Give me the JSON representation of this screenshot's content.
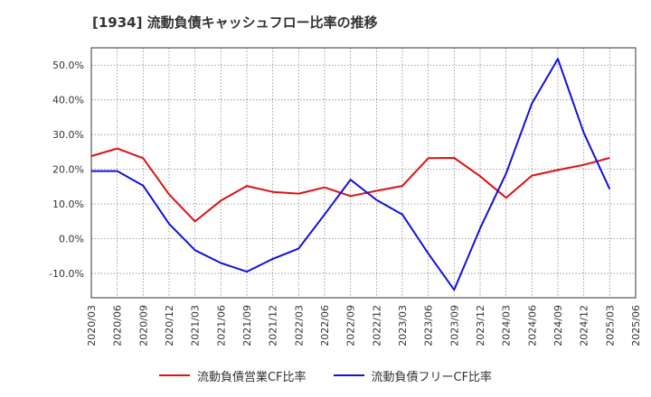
{
  "chart_data": {
    "type": "line",
    "title": "[1934]  流動負債キャッシュフロー比率の推移",
    "xlabel": "",
    "ylabel": "",
    "ylim": [
      -17,
      55
    ],
    "yticks": [
      "50.0%",
      "40.0%",
      "30.0%",
      "20.0%",
      "10.0%",
      "0.0%",
      "-10.0%"
    ],
    "ytick_values": [
      50,
      40,
      30,
      20,
      10,
      0,
      -10
    ],
    "categories": [
      "2020/03",
      "2020/06",
      "2020/09",
      "2020/12",
      "2021/03",
      "2021/06",
      "2021/09",
      "2021/12",
      "2022/03",
      "2022/06",
      "2022/09",
      "2022/12",
      "2023/03",
      "2023/06",
      "2023/09",
      "2023/12",
      "2024/03",
      "2024/06",
      "2024/09",
      "2024/12",
      "2025/03",
      "2025/06"
    ],
    "grid": true,
    "legend_position": "bottom",
    "series": [
      {
        "name": "流動負債営業CF比率",
        "color": "#dd1111",
        "values": [
          23.8,
          26.0,
          23.2,
          12.8,
          5.0,
          11.0,
          15.2,
          13.5,
          13.0,
          14.8,
          12.3,
          13.8,
          15.2,
          23.2,
          23.3,
          18.0,
          11.8,
          18.2,
          19.8,
          21.3,
          23.3,
          null
        ]
      },
      {
        "name": "流動負債フリーCF比率",
        "color": "#1111dd",
        "values": [
          19.5,
          19.5,
          15.3,
          4.3,
          -3.3,
          -7.0,
          -9.5,
          -5.8,
          -2.8,
          7.0,
          17.0,
          11.2,
          7.0,
          -4.3,
          -14.7,
          3.0,
          18.8,
          39.0,
          51.8,
          30.5,
          14.3,
          null
        ]
      }
    ]
  }
}
